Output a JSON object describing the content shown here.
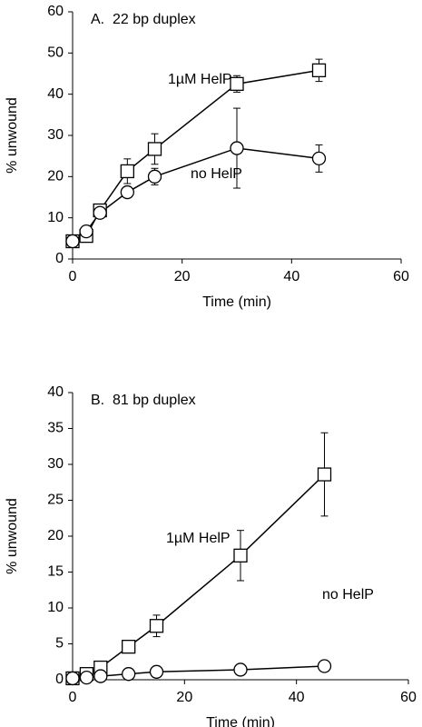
{
  "chart_data": [
    {
      "type": "line",
      "title": "A.  22 bp duplex",
      "xlabel": "Time (min)",
      "ylabel": "% unwound",
      "x": [
        0,
        2.5,
        5,
        10,
        15,
        30,
        45
      ],
      "series": [
        {
          "name": "1µM HelP",
          "marker": "square",
          "color": "#000000",
          "values": [
            4.3,
            5.6,
            11.8,
            21.3,
            26.7,
            42.5,
            45.8
          ],
          "errors": [
            0.8,
            0.8,
            1,
            3,
            3.7,
            2,
            2.7
          ]
        },
        {
          "name": "no HelP",
          "marker": "circle",
          "color": "#000000",
          "values": [
            4.3,
            6.7,
            11.2,
            16.2,
            20,
            26.9,
            24.4
          ],
          "errors": [
            0.8,
            0.8,
            1,
            1,
            2,
            9.7,
            3.3
          ]
        }
      ],
      "xlim": [
        0,
        60
      ],
      "xticks": [
        0,
        20,
        40,
        60
      ],
      "ylim": [
        0,
        60
      ],
      "yticks": [
        0,
        10,
        20,
        30,
        40,
        50,
        60
      ]
    },
    {
      "type": "line",
      "title": "B.  81 bp duplex",
      "xlabel": "Time (min)",
      "ylabel": "% unwound",
      "x": [
        0,
        2.5,
        5,
        10,
        15,
        30,
        45
      ],
      "series": [
        {
          "name": "1µM HelP",
          "marker": "square",
          "color": "#000000",
          "values": [
            0.2,
            0.8,
            1.7,
            4.6,
            7.5,
            17.3,
            28.6
          ],
          "errors": [
            0.2,
            0.3,
            0.4,
            0.5,
            1.5,
            3.5,
            5.8
          ]
        },
        {
          "name": "no HelP",
          "marker": "circle",
          "color": "#000000",
          "values": [
            0.2,
            0.3,
            0.5,
            0.8,
            1.1,
            1.4,
            1.9
          ],
          "errors": [
            0.2,
            0.2,
            0.2,
            0.2,
            0.2,
            0.2,
            0.2
          ]
        }
      ],
      "xlim": [
        0,
        60
      ],
      "xticks": [
        0,
        20,
        40,
        60
      ],
      "ylim": [
        0,
        40
      ],
      "yticks": [
        0,
        5,
        10,
        15,
        20,
        25,
        30,
        35,
        40
      ]
    }
  ]
}
